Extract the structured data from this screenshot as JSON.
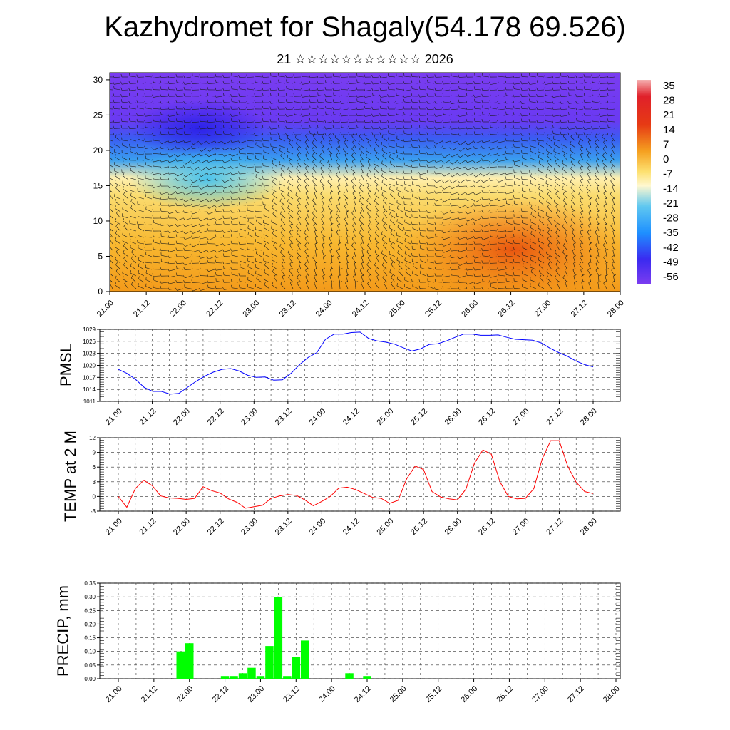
{
  "header": {
    "title": "Kazhydromet for Shagaly(54.178 69.526)",
    "subtitle": "21 ☆☆☆☆☆☆☆☆☆☆☆ 2026"
  },
  "chart_data": [
    {
      "type": "heatmap",
      "title": "",
      "x_ticks": [
        "21.00",
        "21.12",
        "22.00",
        "22.12",
        "23.00",
        "23.12",
        "24.00",
        "24.12",
        "25.00",
        "25.12",
        "26.00",
        "26.12",
        "27.00",
        "27.12",
        "28.00"
      ],
      "y_ticks": [
        0,
        5,
        10,
        15,
        20,
        25,
        30
      ],
      "ylim": [
        0,
        31
      ],
      "colorbar_labels": [
        "35",
        "28",
        "21",
        "14",
        "7",
        "0",
        "-7",
        "-14",
        "-21",
        "-28",
        "-35",
        "-42",
        "-49",
        "-56"
      ],
      "colors": {
        "warm": "#f08a10",
        "hot": "#e24a10",
        "mild": "#fac64a",
        "neutral": "#fff2b0",
        "cool": "#5ac8f0",
        "cold": "#1e90ff",
        "frigid": "#4a3cf0",
        "upper": "#7a3cf0"
      }
    },
    {
      "type": "line",
      "ylabel": "PMSL",
      "y_ticks": [
        1011,
        1014,
        1017,
        1020,
        1023,
        1026,
        1029
      ],
      "ylim": [
        1011,
        1029
      ],
      "x_ticks": [
        "21.00",
        "21.12",
        "22.00",
        "22.12",
        "23.00",
        "23.12",
        "24.00",
        "24.12",
        "25.00",
        "25.12",
        "26.00",
        "26.12",
        "27.00",
        "27.12",
        "28.00"
      ],
      "color": "#0000ff",
      "values": [
        1019,
        1018,
        1016.5,
        1014.5,
        1013.5,
        1013.5,
        1012.8,
        1013,
        1014.5,
        1016,
        1017.3,
        1018.3,
        1019,
        1019.2,
        1018.6,
        1017.5,
        1017,
        1017.1,
        1016.3,
        1016.4,
        1018,
        1020.2,
        1022,
        1023.2,
        1026.5,
        1027.8,
        1027.8,
        1028.2,
        1028.3,
        1026.7,
        1026.1,
        1025.8,
        1025.3,
        1024.4,
        1023.6,
        1024.1,
        1025.2,
        1025.4,
        1026.1,
        1027,
        1027.8,
        1027.8,
        1027.5,
        1027.5,
        1027.6,
        1027,
        1026.5,
        1026.4,
        1026.3,
        1025.6,
        1024.3,
        1023.2,
        1022.3,
        1021.1,
        1020.2,
        1019.6
      ]
    },
    {
      "type": "line",
      "ylabel": "TEMP at 2 M",
      "y_ticks": [
        -3,
        0,
        3,
        6,
        9,
        12
      ],
      "ylim": [
        -3,
        12
      ],
      "x_ticks": [
        "21.00",
        "21.12",
        "22.00",
        "22.12",
        "23.00",
        "23.12",
        "24.00",
        "24.12",
        "25.00",
        "25.12",
        "26.00",
        "26.12",
        "27.00",
        "27.12",
        "28.00"
      ],
      "color": "#ff0000",
      "values": [
        0,
        -2.2,
        1.6,
        3.3,
        2.2,
        0.1,
        -0.3,
        -0.4,
        -0.6,
        -0.4,
        2,
        1.2,
        0.7,
        -0.5,
        -1.2,
        -2.4,
        -2.1,
        -1.8,
        -0.4,
        0.1,
        0.4,
        0.2,
        -0.7,
        -1.9,
        -1,
        0,
        1.7,
        1.9,
        1.4,
        0.6,
        -0.2,
        -0.4,
        -1.4,
        -0.8,
        3.6,
        6.2,
        5.5,
        1,
        -0.1,
        -0.5,
        -0.7,
        1.5,
        6.8,
        9.5,
        8.6,
        3,
        0,
        -0.5,
        -0.4,
        1.6,
        7.7,
        11.4,
        11.4,
        6.2,
        2.9,
        1,
        0.6
      ]
    },
    {
      "type": "bar",
      "ylabel": "PRECIP, mm",
      "y_ticks": [
        "0.00",
        "0.05",
        "0.10",
        "0.15",
        "0.20",
        "0.25",
        "0.30",
        "0.35"
      ],
      "ylim": [
        0,
        0.35
      ],
      "x_ticks": [
        "21.00",
        "21.12",
        "22.00",
        "22.12",
        "23.00",
        "23.12",
        "24.00",
        "24.12",
        "25.00",
        "25.12",
        "26.00",
        "26.12",
        "27.00",
        "27.12",
        "28.00"
      ],
      "color": "#00ff00",
      "values": [
        0,
        0,
        0,
        0,
        0,
        0,
        0,
        0.1,
        0.13,
        0,
        0,
        0,
        0.01,
        0.01,
        0.02,
        0.04,
        0.01,
        0.12,
        0.3,
        0.01,
        0.08,
        0.14,
        0,
        0,
        0,
        0,
        0.02,
        0,
        0.01,
        0,
        0,
        0,
        0,
        0,
        0,
        0,
        0,
        0,
        0,
        0,
        0,
        0,
        0,
        0,
        0,
        0,
        0,
        0,
        0,
        0,
        0,
        0,
        0,
        0,
        0,
        0,
        0
      ]
    }
  ]
}
